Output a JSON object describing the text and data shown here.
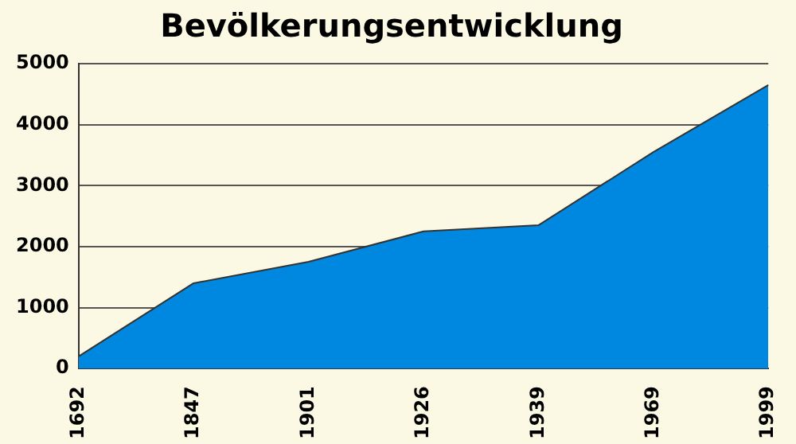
{
  "chart_data": {
    "type": "area",
    "title": "Bevölkerungsentwicklung",
    "categories": [
      "1692",
      "1847",
      "1901",
      "1926",
      "1939",
      "1969",
      "1999"
    ],
    "values": [
      200,
      1400,
      1750,
      2250,
      2350,
      3550,
      4650
    ],
    "color": "#0088e0",
    "ylim": [
      0,
      5000
    ],
    "yticks": [
      0,
      1000,
      2000,
      3000,
      4000,
      5000
    ],
    "grid": "y",
    "legend": false
  }
}
